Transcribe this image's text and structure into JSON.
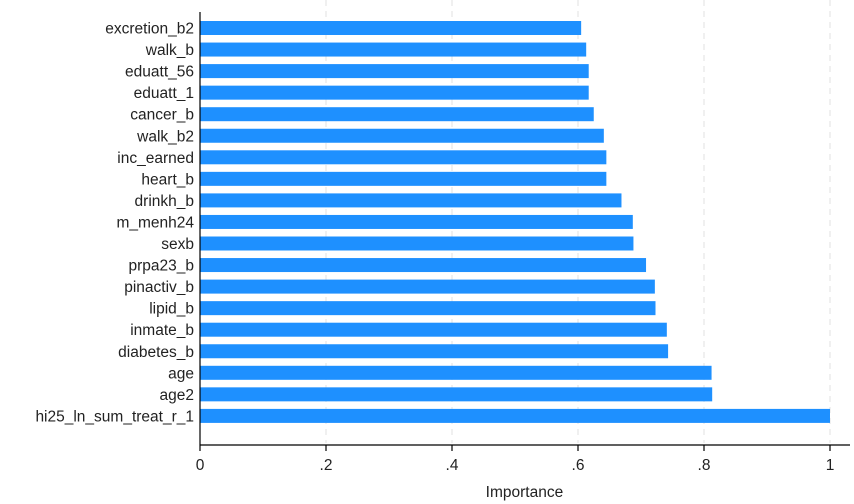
{
  "chart_data": {
    "type": "bar",
    "orientation": "horizontal",
    "categories": [
      "excretion_b2",
      "walk_b",
      "eduatt_56",
      "eduatt_1",
      "cancer_b",
      "walk_b2",
      "inc_earned",
      "heart_b",
      "drinkh_b",
      "m_menh24",
      "sexb",
      "prpa23_b",
      "pinactiv_b",
      "lipid_b",
      "inmate_b",
      "diabetes_b",
      "age",
      "age2",
      "hi25_ln_sum_treat_r_1"
    ],
    "values": [
      0.605,
      0.613,
      0.617,
      0.617,
      0.625,
      0.641,
      0.645,
      0.645,
      0.669,
      0.687,
      0.688,
      0.708,
      0.722,
      0.723,
      0.741,
      0.743,
      0.812,
      0.813,
      1.0
    ],
    "xlim": [
      0,
      1.03
    ],
    "xticks": [
      0,
      0.2,
      0.4,
      0.6,
      0.8,
      1
    ],
    "xtick_labels": [
      "0",
      ".2",
      ".4",
      ".6",
      ".8",
      "1"
    ],
    "xlabel": "Importance",
    "ylabel": "",
    "title": "",
    "grid": "vertical dashed",
    "bar_color": "#1e90ff",
    "grid_color": "#e8e8e8"
  }
}
